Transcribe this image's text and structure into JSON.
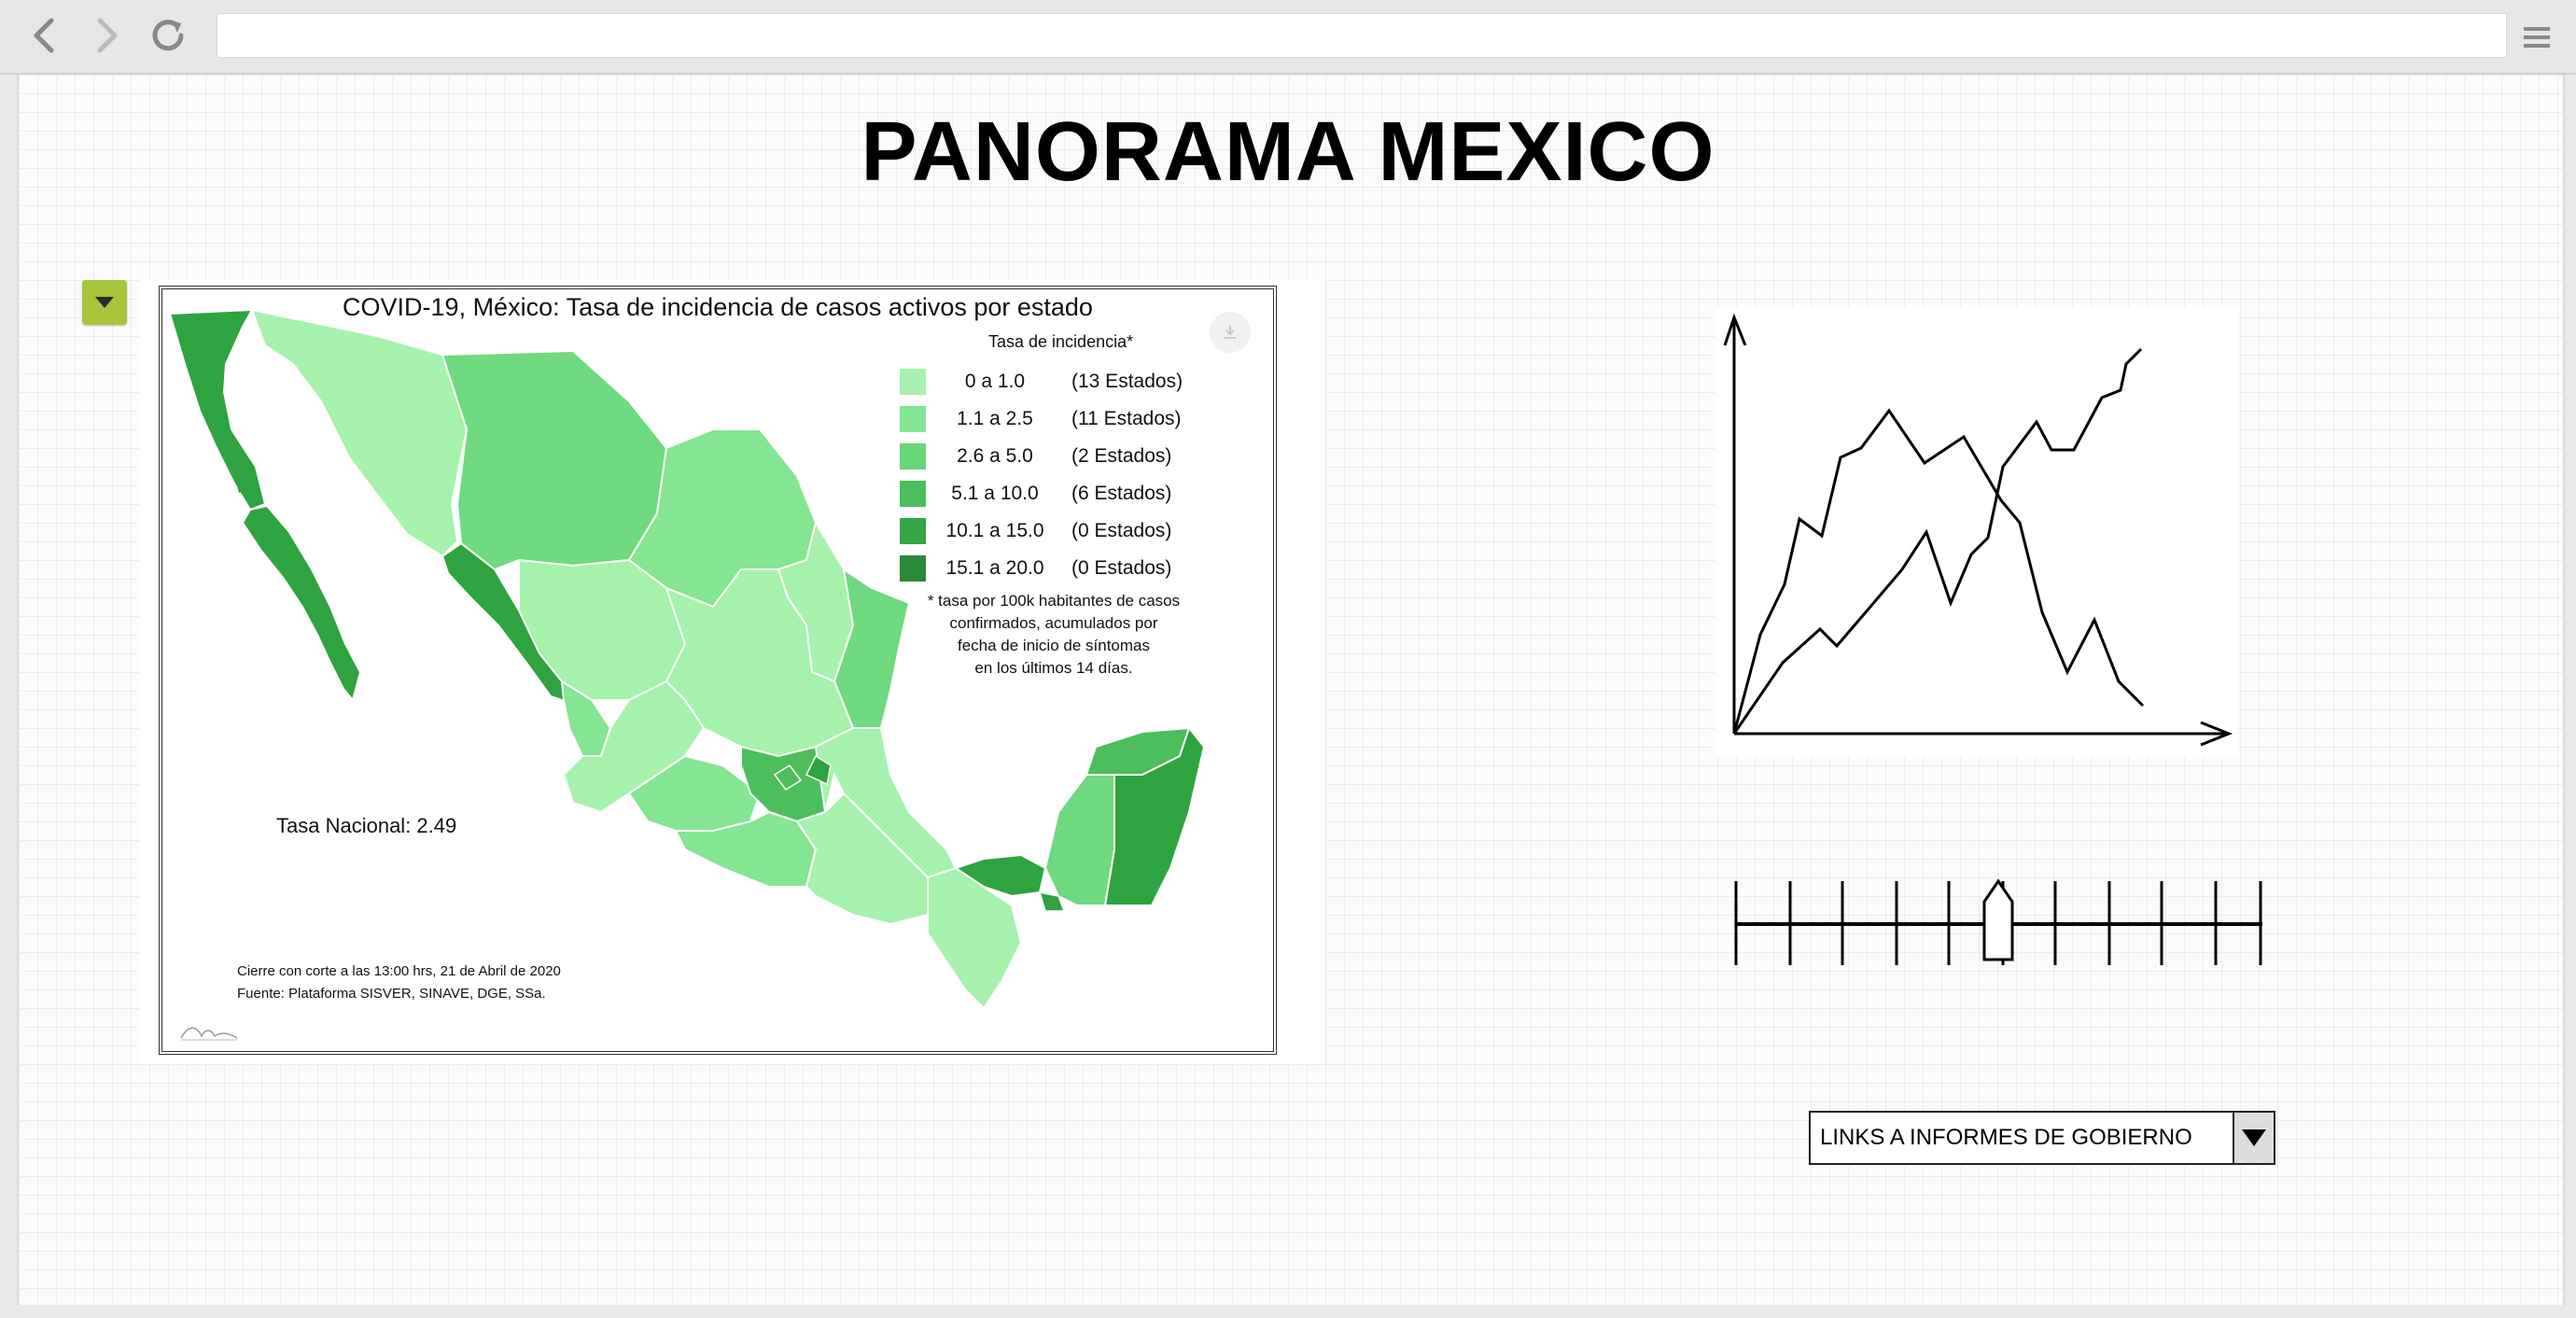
{
  "browser": {
    "address": "",
    "icons": {
      "back": "back-arrow-icon",
      "forward": "forward-arrow-icon",
      "reload": "reload-icon",
      "menu": "hamburger-menu-icon"
    }
  },
  "page": {
    "title": "PANORAMA MEXICO",
    "toggle_icon": "caret-down-icon",
    "accent_color": "#a7c53a"
  },
  "map": {
    "title": "COVID-19, México: Tasa de incidencia de casos activos por estado",
    "legend_title": "Tasa de incidencia*",
    "legend": [
      {
        "range": "0 a 1.0",
        "count": "(13 Estados)",
        "color": "#a6f2ad"
      },
      {
        "range": "1.1 a  2.5",
        "count": "(11 Estados)",
        "color": "#84e592"
      },
      {
        "range": "2.6 a 5.0",
        "count": "(2 Estados)",
        "color": "#68d778"
      },
      {
        "range": "5.1 a  10.0",
        "count": "(6 Estados)",
        "color": "#4cbe5c"
      },
      {
        "range": "10.1 a 15.0",
        "count": "(0 Estados)",
        "color": "#35a646"
      },
      {
        "range": "15.1 a 20.0",
        "count": "(0 Estados)",
        "color": "#2a8a3a"
      }
    ],
    "note": [
      "* tasa por 100k habitantes de casos",
      "confirmados, acumulados por",
      "fecha de inicio de síntomas",
      "en los últimos 14 días."
    ],
    "national_rate": "Tasa Nacional: 2.49",
    "footer": [
      "Cierre con corte a las 13:00 hrs, 21 de Abril de 2020",
      "Fuente: Plataforma SISVER, SINAVE, DGE, SSa."
    ],
    "download_icon": "download-icon"
  },
  "dropdown": {
    "label": "LINKS A INFORMES DE GOBIERNO",
    "arrow_icon": "caret-down-icon"
  }
}
